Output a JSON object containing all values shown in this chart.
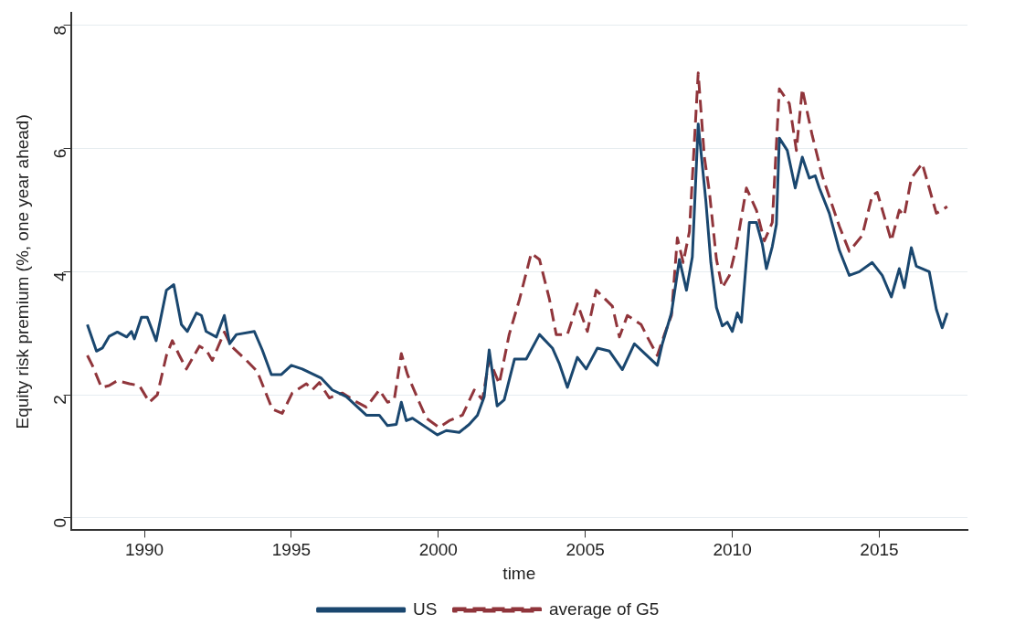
{
  "chart_data": {
    "type": "line",
    "xlabel": "time",
    "ylabel": "Equity risk premium (%, one year ahead)",
    "xlim": [
      1987.5,
      2018
    ],
    "xticks": [
      1990,
      1995,
      2000,
      2005,
      2010,
      2015
    ],
    "ylim": [
      -0.2,
      8.2
    ],
    "yticks": [
      0,
      2,
      4,
      6,
      8
    ],
    "grid": "y",
    "legend": "bottom",
    "marker": "none",
    "series": [
      {
        "name": "US",
        "color": "#1a476f",
        "line_style": "solid",
        "x": [
          1988.06,
          1988.37,
          1988.57,
          1988.8,
          1989.08,
          1989.4,
          1989.56,
          1989.66,
          1989.9,
          1990.1,
          1990.4,
          1990.75,
          1991.0,
          1991.26,
          1991.46,
          1991.77,
          1991.94,
          1992.1,
          1992.45,
          1992.72,
          1992.9,
          1993.13,
          1993.74,
          1994.01,
          1994.32,
          1994.66,
          1995.0,
          1995.37,
          1996.02,
          1996.39,
          1996.87,
          1997.55,
          1997.99,
          1998.27,
          1998.57,
          1998.74,
          1998.91,
          1999.12,
          1999.59,
          1999.97,
          2000.27,
          2000.71,
          2001.05,
          2001.33,
          2001.56,
          2001.73,
          2002.0,
          2002.24,
          2002.59,
          2002.99,
          2003.44,
          2003.88,
          2004.12,
          2004.39,
          2004.73,
          2005.03,
          2005.41,
          2005.82,
          2006.26,
          2006.67,
          2007.07,
          2007.45,
          2007.62,
          2007.93,
          2008.2,
          2008.44,
          2008.64,
          2008.84,
          2009.1,
          2009.27,
          2009.46,
          2009.66,
          2009.83,
          2010.0,
          2010.17,
          2010.31,
          2010.58,
          2010.82,
          2011.02,
          2011.16,
          2011.36,
          2011.5,
          2011.6,
          2011.87,
          2012.14,
          2012.38,
          2012.62,
          2012.82,
          2012.96,
          2013.3,
          2013.64,
          2013.98,
          2014.32,
          2014.76,
          2015.1,
          2015.41,
          2015.68,
          2015.85,
          2016.09,
          2016.26,
          2016.7,
          2016.94,
          2017.14,
          2017.31
        ],
        "values": [
          3.14,
          2.71,
          2.76,
          2.95,
          3.02,
          2.94,
          3.03,
          2.91,
          3.26,
          3.26,
          2.88,
          3.7,
          3.79,
          3.14,
          3.03,
          3.33,
          3.29,
          3.03,
          2.94,
          3.29,
          2.83,
          2.98,
          3.03,
          2.73,
          2.33,
          2.33,
          2.48,
          2.42,
          2.27,
          2.08,
          1.97,
          1.67,
          1.67,
          1.5,
          1.52,
          1.88,
          1.58,
          1.62,
          1.47,
          1.35,
          1.42,
          1.39,
          1.52,
          1.67,
          1.97,
          2.73,
          1.82,
          1.92,
          2.58,
          2.58,
          2.98,
          2.76,
          2.5,
          2.12,
          2.61,
          2.42,
          2.76,
          2.71,
          2.41,
          2.83,
          2.65,
          2.48,
          2.83,
          3.33,
          4.2,
          3.7,
          4.24,
          6.4,
          5.15,
          4.15,
          3.42,
          3.12,
          3.18,
          3.03,
          3.33,
          3.18,
          4.8,
          4.8,
          4.45,
          4.05,
          4.41,
          4.77,
          6.17,
          5.97,
          5.36,
          5.86,
          5.52,
          5.56,
          5.36,
          4.95,
          4.35,
          3.94,
          4.0,
          4.15,
          3.94,
          3.59,
          4.05,
          3.74,
          4.39,
          4.09,
          4.0,
          3.39,
          3.09,
          3.33
        ]
      },
      {
        "name": "average of G5",
        "color": "#90353b",
        "line_style": "dashed",
        "x": [
          1988.06,
          1988.23,
          1988.54,
          1988.8,
          1989.08,
          1989.49,
          1989.83,
          1990.17,
          1990.44,
          1990.75,
          1990.95,
          1991.19,
          1991.43,
          1991.87,
          1992.1,
          1992.31,
          1992.72,
          1992.96,
          1993.47,
          1993.84,
          1994.35,
          1994.69,
          1995.03,
          1995.51,
          1995.71,
          1995.95,
          1996.29,
          1996.73,
          1997.2,
          1997.55,
          1997.99,
          1998.27,
          1998.5,
          1998.74,
          1998.95,
          1999.35,
          1999.59,
          2000.03,
          2000.37,
          2000.82,
          2001.22,
          2001.5,
          2001.73,
          2002.07,
          2002.41,
          2002.76,
          2003.16,
          2003.44,
          2003.78,
          2004.01,
          2004.39,
          2004.73,
          2005.07,
          2005.37,
          2005.92,
          2006.16,
          2006.43,
          2006.9,
          2007.11,
          2007.45,
          2007.69,
          2007.93,
          2008.13,
          2008.33,
          2008.54,
          2008.84,
          2009.05,
          2009.22,
          2009.46,
          2009.66,
          2009.9,
          2010.14,
          2010.48,
          2010.82,
          2011.09,
          2011.36,
          2011.6,
          2011.94,
          2012.18,
          2012.38,
          2012.72,
          2013.06,
          2013.2,
          2013.64,
          2013.98,
          2014.42,
          2014.76,
          2014.93,
          2015.41,
          2015.68,
          2015.85,
          2016.09,
          2016.46,
          2016.94,
          2017.14,
          2017.31
        ],
        "values": [
          2.64,
          2.48,
          2.12,
          2.15,
          2.23,
          2.18,
          2.15,
          1.88,
          2.0,
          2.64,
          2.88,
          2.64,
          2.42,
          2.79,
          2.73,
          2.56,
          3.02,
          2.79,
          2.56,
          2.38,
          1.77,
          1.7,
          2.03,
          2.18,
          2.08,
          2.2,
          1.95,
          2.03,
          1.89,
          1.8,
          2.08,
          1.88,
          1.92,
          2.67,
          2.33,
          1.88,
          1.62,
          1.47,
          1.58,
          1.67,
          2.08,
          1.92,
          2.58,
          2.18,
          2.98,
          3.55,
          4.3,
          4.2,
          3.55,
          2.98,
          2.98,
          3.48,
          3.03,
          3.7,
          3.44,
          2.94,
          3.29,
          3.14,
          2.94,
          2.64,
          2.98,
          3.29,
          4.55,
          4.15,
          4.65,
          7.23,
          5.86,
          5.3,
          4.2,
          3.74,
          3.94,
          4.41,
          5.36,
          5.0,
          4.5,
          4.8,
          6.97,
          6.73,
          5.97,
          6.97,
          6.21,
          5.56,
          5.36,
          4.74,
          4.33,
          4.59,
          5.24,
          5.29,
          4.5,
          5.0,
          4.91,
          5.52,
          5.76,
          4.95,
          5.0,
          5.06
        ]
      }
    ]
  }
}
